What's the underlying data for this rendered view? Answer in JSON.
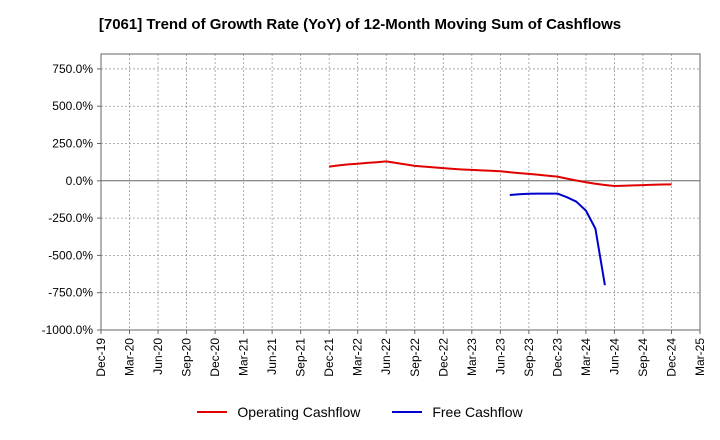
{
  "chart_data": {
    "type": "line",
    "title": "[7061]  Trend of Growth Rate (YoY) of 12-Month Moving Sum of Cashflows",
    "ylim": [
      -1000,
      850
    ],
    "y_ticks": [
      750,
      500,
      250,
      0,
      -250,
      -500,
      -750,
      -1000
    ],
    "y_tick_labels": [
      "750.0%",
      "500.0%",
      "250.0%",
      "0.0%",
      "-250.0%",
      "-500.0%",
      "-750.0%",
      "-1000.0%"
    ],
    "x_ticks": [
      "Dec-19",
      "Mar-20",
      "Jun-20",
      "Sep-20",
      "Dec-20",
      "Mar-21",
      "Jun-21",
      "Sep-21",
      "Dec-21",
      "Mar-22",
      "Jun-22",
      "Sep-22",
      "Dec-22",
      "Mar-23",
      "Jun-23",
      "Sep-23",
      "Dec-23",
      "Mar-24",
      "Jun-24",
      "Sep-24",
      "Dec-24",
      "Mar-25"
    ],
    "grid": true,
    "legend_position": "bottom",
    "series": [
      {
        "name": "Operating Cashflow",
        "color": "#e00000",
        "x": [
          "Dec-21",
          "Jan-22",
          "Feb-22",
          "Mar-22",
          "Apr-22",
          "May-22",
          "Jun-22",
          "Jul-22",
          "Aug-22",
          "Sep-22",
          "Oct-22",
          "Nov-22",
          "Dec-22",
          "Jan-23",
          "Feb-23",
          "Mar-23",
          "Apr-23",
          "May-23",
          "Jun-23",
          "Jul-23",
          "Aug-23",
          "Sep-23",
          "Oct-23",
          "Nov-23",
          "Dec-23",
          "Jan-24",
          "Feb-24",
          "Mar-24",
          "Apr-24",
          "May-24",
          "Jun-24",
          "Jul-24",
          "Aug-24",
          "Sep-24",
          "Oct-24",
          "Nov-24",
          "Dec-24"
        ],
        "y": [
          95,
          103,
          110,
          115,
          120,
          125,
          130,
          120,
          110,
          100,
          95,
          90,
          85,
          80,
          76,
          73,
          70,
          67,
          64,
          58,
          52,
          46,
          40,
          34,
          28,
          15,
          2,
          -10,
          -20,
          -28,
          -35,
          -33,
          -31,
          -29,
          -27,
          -25,
          -24
        ]
      },
      {
        "name": "Free Cashflow",
        "color": "#0000cc",
        "x": [
          "Jul-23",
          "Aug-23",
          "Sep-23",
          "Oct-23",
          "Nov-23",
          "Dec-23",
          "Jan-24",
          "Feb-24",
          "Mar-24",
          "Apr-24",
          "May-24"
        ],
        "y": [
          -95,
          -90,
          -87,
          -86,
          -86,
          -86,
          -110,
          -140,
          -200,
          -320,
          -700
        ]
      }
    ]
  }
}
